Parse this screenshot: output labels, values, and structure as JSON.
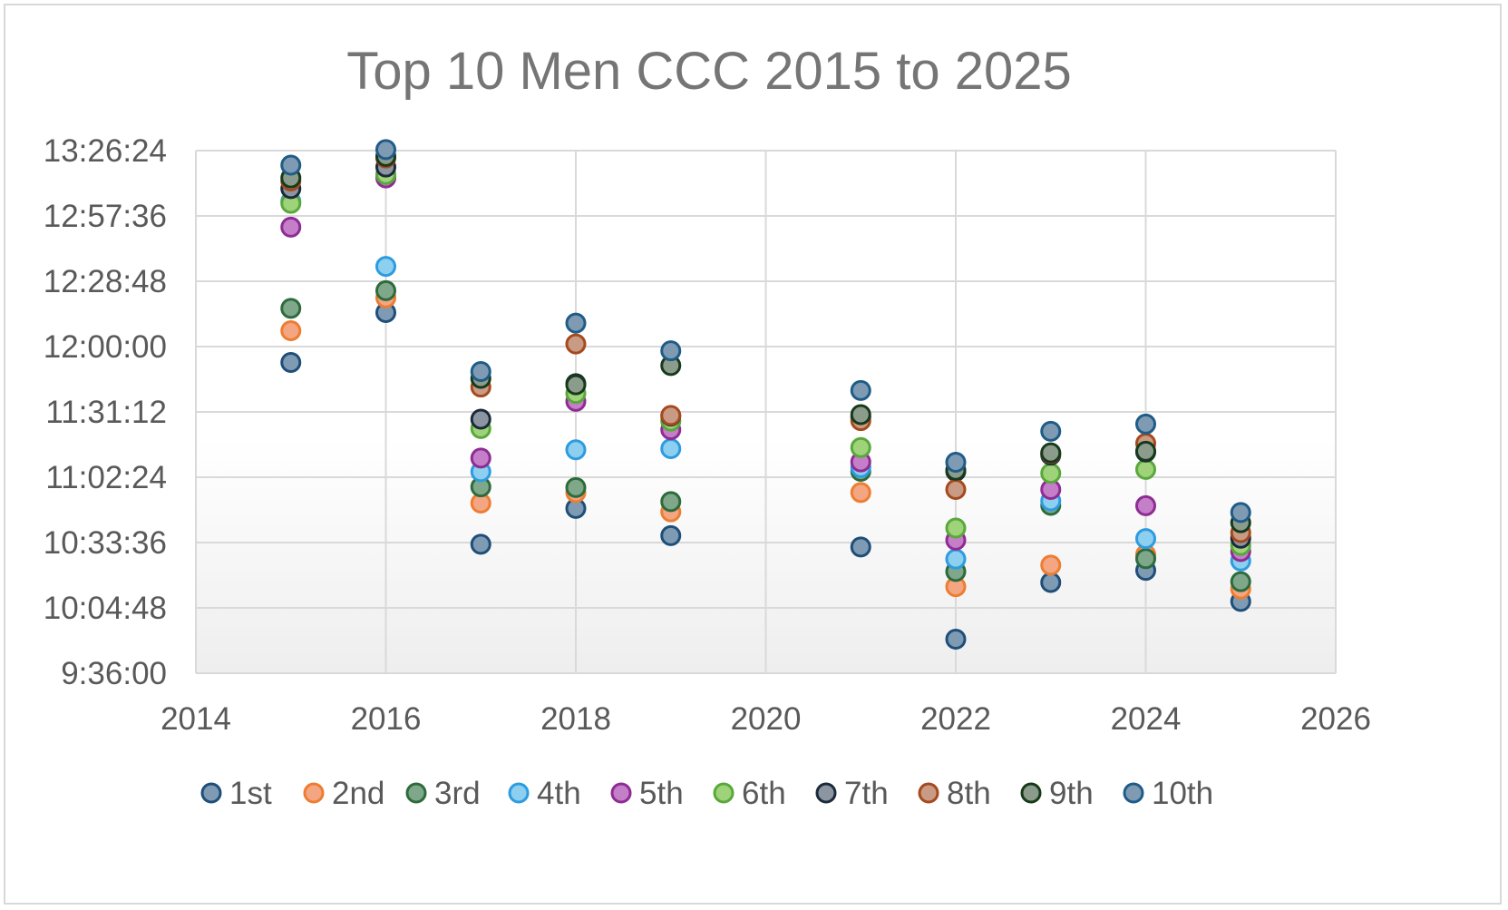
{
  "chart_data": {
    "type": "scatter",
    "title": "Top 10 Men CCC 2015 to 2025",
    "xlabel": "",
    "ylabel": "",
    "xlim": [
      2014,
      2026
    ],
    "x_ticks": [
      2014,
      2016,
      2018,
      2020,
      2022,
      2024,
      2026
    ],
    "x_tick_labels": [
      "2014",
      "2016",
      "2018",
      "2020",
      "2022",
      "2024",
      "2026"
    ],
    "ylim_seconds": [
      34560,
      48384
    ],
    "y_ticks_seconds": [
      34560,
      36288,
      38016,
      39744,
      41472,
      43200,
      44928,
      46656,
      48384
    ],
    "y_tick_labels": [
      "9:36:00",
      "10:04:48",
      "10:33:36",
      "11:02:24",
      "11:31:12",
      "12:00:00",
      "12:28:48",
      "12:57:36",
      "13:26:24"
    ],
    "grid": true,
    "legend_position": "bottom",
    "x": [
      2015,
      2016,
      2017,
      2018,
      2019,
      2021,
      2022,
      2023,
      2024,
      2025
    ],
    "series": [
      {
        "name": "1st",
        "fill": "#7f9bb3",
        "stroke": "#1f4e79",
        "values": [
          42780,
          44100,
          37970,
          38920,
          38200,
          37900,
          35460,
          36960,
          37280,
          36460
        ]
      },
      {
        "name": "2nd",
        "fill": "#f4a582",
        "stroke": "#ed7d31",
        "values": [
          43620,
          44490,
          39060,
          39340,
          38830,
          39340,
          36850,
          37420,
          37700,
          36790
        ]
      },
      {
        "name": "3rd",
        "fill": "#7fa88a",
        "stroke": "#2e6b3c",
        "values": [
          44210,
          44680,
          39490,
          39470,
          39100,
          39900,
          37250,
          39000,
          37590,
          36980
        ]
      },
      {
        "name": "4th",
        "fill": "#8ccfee",
        "stroke": "#2e9be0",
        "values": [
          47040,
          45320,
          39890,
          40470,
          40500,
          40000,
          37580,
          39120,
          38120,
          37530
        ]
      },
      {
        "name": "5th",
        "fill": "#c47fc8",
        "stroke": "#8e2c94",
        "values": [
          46360,
          47660,
          40250,
          41750,
          41000,
          40150,
          38080,
          39420,
          38990,
          37780
        ]
      },
      {
        "name": "6th",
        "fill": "#9ed37a",
        "stroke": "#5aa83c",
        "values": [
          46990,
          47750,
          41030,
          41960,
          41230,
          40530,
          38400,
          39850,
          39950,
          37940
        ]
      },
      {
        "name": "7th",
        "fill": "#8c96a2",
        "stroke": "#1b2a3a",
        "values": [
          47380,
          47950,
          41280,
          42220,
          41360,
          41330,
          39900,
          40330,
          40410,
          38130
        ]
      },
      {
        "name": "8th",
        "fill": "#c99a84",
        "stroke": "#a54a1e",
        "values": [
          47580,
          48190,
          42130,
          43270,
          41380,
          41240,
          39420,
          40370,
          40640,
          38280
        ]
      },
      {
        "name": "9th",
        "fill": "#8c9c8c",
        "stroke": "#173a1c",
        "values": [
          47660,
          48230,
          42360,
          42190,
          42700,
          41400,
          39930,
          40390,
          40430,
          38540
        ]
      },
      {
        "name": "10th",
        "fill": "#7f9bb3",
        "stroke": "#1f5c87",
        "values": [
          48000,
          48410,
          42540,
          43820,
          43090,
          42040,
          40140,
          40960,
          41150,
          38810
        ]
      }
    ]
  }
}
